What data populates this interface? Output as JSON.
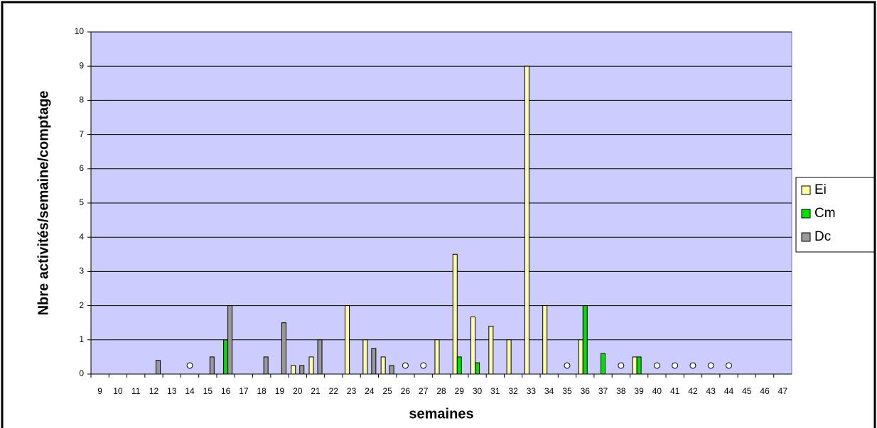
{
  "chart_data": {
    "type": "bar",
    "y_label": "Nbre activités/semaine/comptage",
    "x_label": "semaines",
    "categories": [
      "9",
      "10",
      "11",
      "12",
      "13",
      "14",
      "15",
      "16",
      "17",
      "18",
      "19",
      "20",
      "21",
      "22",
      "23",
      "24",
      "25",
      "26",
      "27",
      "28",
      "29",
      "30",
      "31",
      "32",
      "33",
      "34",
      "35",
      "36",
      "37",
      "38",
      "39",
      "40",
      "41",
      "42",
      "43",
      "44",
      "45",
      "46",
      "47"
    ],
    "series": [
      {
        "name": "Ei",
        "color": "#ffffa8",
        "values": [
          null,
          null,
          null,
          null,
          null,
          null,
          null,
          null,
          null,
          null,
          null,
          0.25,
          0.5,
          null,
          2,
          1,
          0.5,
          null,
          null,
          1,
          3.5,
          1.67,
          1.4,
          1,
          9,
          2,
          null,
          1,
          null,
          null,
          0.5,
          null,
          null,
          null,
          null,
          null,
          null,
          null,
          null
        ]
      },
      {
        "name": "Cm",
        "color": "#00e000",
        "values": [
          null,
          null,
          null,
          null,
          null,
          null,
          null,
          1,
          null,
          null,
          null,
          null,
          null,
          null,
          null,
          null,
          null,
          null,
          null,
          null,
          0.5,
          0.33,
          null,
          null,
          null,
          null,
          null,
          2,
          0.6,
          null,
          0.5,
          null,
          null,
          null,
          null,
          null,
          null,
          null,
          null
        ]
      },
      {
        "name": "Dc",
        "color": "#999999",
        "values": [
          null,
          null,
          null,
          0.4,
          null,
          null,
          0.5,
          2,
          null,
          0.5,
          1.5,
          0.25,
          1,
          null,
          null,
          0.75,
          0.25,
          null,
          null,
          null,
          null,
          null,
          null,
          null,
          null,
          null,
          null,
          null,
          null,
          null,
          null,
          null,
          null,
          null,
          null,
          null,
          null,
          null,
          null
        ]
      }
    ],
    "markers": [
      {
        "category": "14",
        "value": 0.25
      },
      {
        "category": "26",
        "value": 0.25
      },
      {
        "category": "27",
        "value": 0.25
      },
      {
        "category": "35",
        "value": 0.25
      },
      {
        "category": "38",
        "value": 0.25
      },
      {
        "category": "40",
        "value": 0.25
      },
      {
        "category": "41",
        "value": 0.25
      },
      {
        "category": "42",
        "value": 0.25
      },
      {
        "category": "43",
        "value": 0.25
      },
      {
        "category": "44",
        "value": 0.25
      }
    ],
    "ylim": [
      0,
      10
    ],
    "yticks": [
      0,
      1,
      2,
      3,
      4,
      5,
      6,
      7,
      8,
      9,
      10
    ],
    "grid": true,
    "legend": "right",
    "plot_background": "#ccccff"
  }
}
